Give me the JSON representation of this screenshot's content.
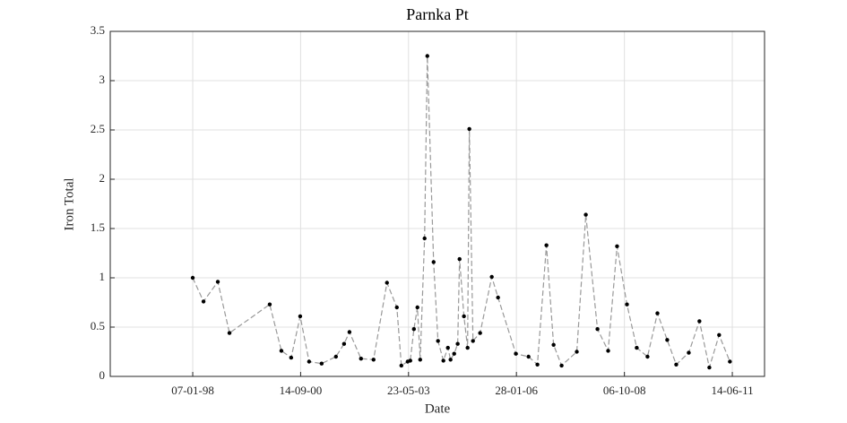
{
  "chart_data": {
    "type": "line",
    "title": "Parnka Pt",
    "xlabel": "Date",
    "ylabel": "Iron Total",
    "x": [
      "1998-01-07",
      "1998-04-15",
      "1998-08-23",
      "1998-12-07",
      "1999-12-08",
      "2000-03-23",
      "2000-06-20",
      "2000-09-10",
      "2000-11-30",
      "2001-03-24",
      "2001-08-01",
      "2001-10-14",
      "2001-12-02",
      "2002-03-17",
      "2002-07-09",
      "2002-11-08",
      "2003-02-06",
      "2003-03-19",
      "2003-05-15",
      "2003-06-08",
      "2003-07-11",
      "2003-08-12",
      "2003-09-06",
      "2003-10-16",
      "2003-11-10",
      "2004-01-06",
      "2004-02-15",
      "2004-04-04",
      "2004-05-15",
      "2004-06-08",
      "2004-07-11",
      "2004-08-12",
      "2004-08-29",
      "2004-10-08",
      "2004-11-10",
      "2004-11-26",
      "2004-12-29",
      "2005-03-04",
      "2005-06-18",
      "2005-08-14",
      "2006-01-23",
      "2006-05-18",
      "2006-08-07",
      "2006-10-28",
      "2007-01-01",
      "2007-03-15",
      "2007-07-31",
      "2007-10-21",
      "2008-02-04",
      "2008-05-11",
      "2008-07-31",
      "2008-10-29",
      "2009-01-26",
      "2009-05-04",
      "2009-08-02",
      "2009-10-30",
      "2010-01-20",
      "2010-05-14",
      "2010-08-19",
      "2010-11-17",
      "2011-02-14",
      "2011-05-23"
    ],
    "values": [
      1.0,
      0.76,
      0.96,
      0.44,
      0.73,
      0.26,
      0.19,
      0.61,
      0.15,
      0.13,
      0.2,
      0.33,
      0.45,
      0.18,
      0.17,
      0.95,
      0.7,
      0.11,
      0.15,
      0.16,
      0.48,
      0.7,
      0.17,
      1.4,
      3.25,
      1.16,
      0.36,
      0.16,
      0.29,
      0.17,
      0.23,
      0.33,
      1.19,
      0.61,
      0.29,
      2.51,
      0.36,
      0.44,
      1.01,
      0.8,
      0.23,
      0.2,
      0.12,
      1.33,
      0.32,
      0.11,
      0.25,
      1.64,
      0.48,
      0.26,
      1.32,
      0.73,
      0.29,
      0.2,
      0.64,
      0.37,
      0.12,
      0.24,
      0.56,
      0.09,
      0.42,
      0.15
    ],
    "line_color": "#999999",
    "marker_color": "#000000",
    "xlim": [
      "1995-12-19",
      "2012-04-02"
    ],
    "xticks": [
      {
        "value": "1998-01-07",
        "label": "07-01-98"
      },
      {
        "value": "2000-09-14",
        "label": "14-09-00"
      },
      {
        "value": "2003-05-23",
        "label": "23-05-03"
      },
      {
        "value": "2006-01-28",
        "label": "28-01-06"
      },
      {
        "value": "2008-10-06",
        "label": "06-10-08"
      },
      {
        "value": "2011-06-14",
        "label": "14-06-11"
      }
    ],
    "ylim": [
      0,
      3.5
    ],
    "yticks": [
      0,
      0.5,
      1,
      1.5,
      2,
      2.5,
      3,
      3.5
    ],
    "grid": true
  }
}
